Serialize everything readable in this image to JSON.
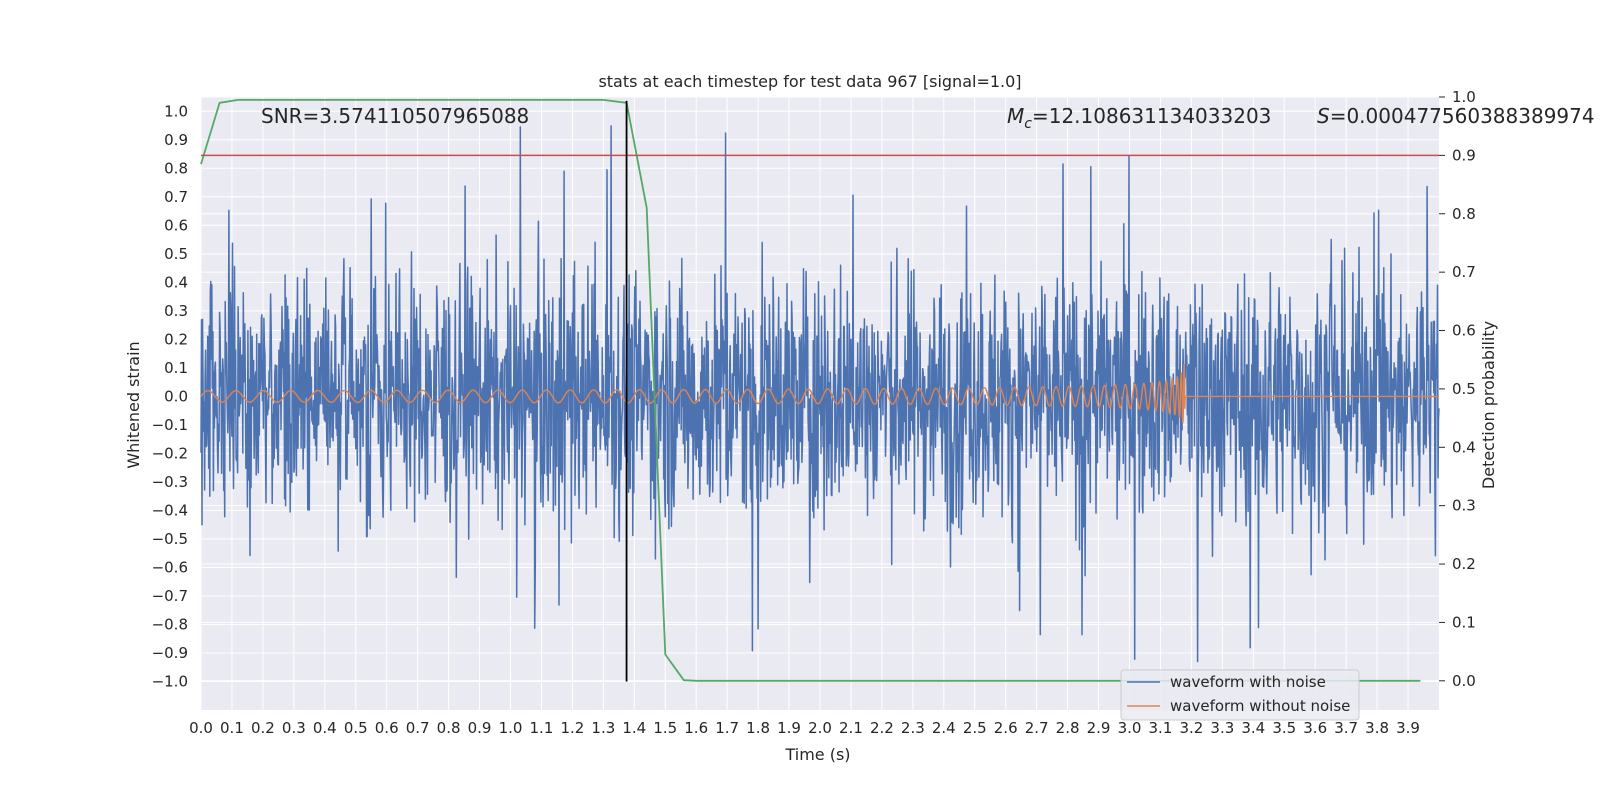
{
  "colors": {
    "background": "#eaeaf2",
    "grid": "#ffffff",
    "noisy": "#4c72b0",
    "clean": "#dd8452",
    "probability": "#55a868",
    "threshold": "#c44e52",
    "marker": "#000000"
  },
  "chart_data": {
    "type": "line",
    "title": "stats at each timestep for test data 967 [signal=1.0]",
    "xlabel": "Time (s)",
    "ylabel_left": "Whitened strain",
    "ylabel_right": "Detection probability",
    "xlim": [
      0.0,
      4.0
    ],
    "ylim_left": [
      -1.1,
      1.05
    ],
    "ylim_right": [
      -0.05,
      1.0
    ],
    "x_ticks": [
      "0.0",
      "0.1",
      "0.2",
      "0.3",
      "0.4",
      "0.5",
      "0.6",
      "0.7",
      "0.8",
      "0.9",
      "1.0",
      "1.1",
      "1.2",
      "1.3",
      "1.4",
      "1.5",
      "1.6",
      "1.7",
      "1.8",
      "1.9",
      "2.0",
      "2.1",
      "2.2",
      "2.3",
      "2.4",
      "2.5",
      "2.6",
      "2.7",
      "2.8",
      "2.9",
      "3.0",
      "3.1",
      "3.2",
      "3.3",
      "3.4",
      "3.5",
      "3.6",
      "3.7",
      "3.8",
      "3.9"
    ],
    "y_ticks_left": [
      "1.0",
      "0.9",
      "0.8",
      "0.7",
      "0.6",
      "0.5",
      "0.4",
      "0.3",
      "0.2",
      "0.1",
      "0.0",
      "−0.1",
      "−0.2",
      "−0.3",
      "−0.4",
      "−0.5",
      "−0.6",
      "−0.7",
      "−0.8",
      "−0.9",
      "−1.0"
    ],
    "y_ticks_right": [
      "1.0",
      "0.9",
      "0.8",
      "0.7",
      "0.6",
      "0.5",
      "0.4",
      "0.3",
      "0.2",
      "0.1",
      "0.0"
    ],
    "annotations": {
      "snr": "SNR=3.574110507965088",
      "mc": "=12.108631134033203",
      "mc_symbol": "M",
      "mc_subscript": "c",
      "s": "=0.000477560388389974",
      "s_symbol": "S"
    },
    "detection_threshold": 0.9,
    "detection_time": 1.375,
    "series": [
      {
        "name": "waveform with noise",
        "axis": "left",
        "kind": "noise",
        "amplitude_typical": 0.35,
        "amplitude_peak": 0.95,
        "x_range": [
          0.0,
          4.0
        ]
      },
      {
        "name": "waveform without noise",
        "axis": "left",
        "kind": "chirp",
        "start_amplitude": 0.02,
        "peak_amplitude": 0.15,
        "merger_time": 3.18,
        "x_range": [
          0.0,
          4.0
        ]
      },
      {
        "name": "detection probability",
        "axis": "right",
        "x": [
          0.0,
          0.06,
          0.12,
          0.2,
          0.5,
          1.0,
          1.3,
          1.375,
          1.44,
          1.5,
          1.56,
          1.6,
          2.0,
          2.5,
          3.0,
          3.5,
          3.94
        ],
        "values": [
          0.885,
          0.99,
          0.995,
          0.995,
          0.995,
          0.995,
          0.995,
          0.99,
          0.81,
          0.045,
          0.001,
          0.0,
          0.0,
          0.0,
          0.0,
          0.0,
          0.0
        ]
      }
    ],
    "legend": [
      "waveform with noise",
      "waveform without noise"
    ],
    "legend_position": "lower-right"
  }
}
